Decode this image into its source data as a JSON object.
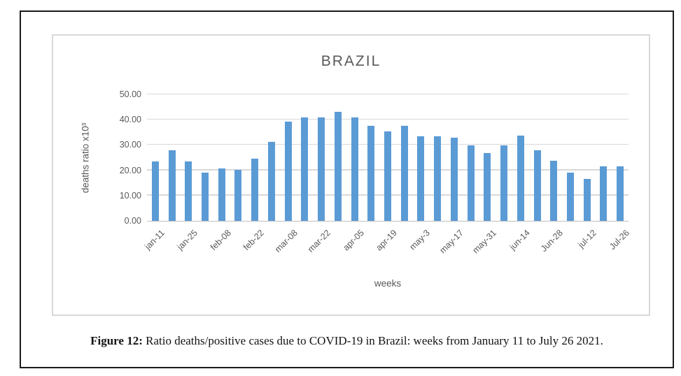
{
  "figure": {
    "caption_prefix": "Figure 12:",
    "caption_text": " Ratio deaths/positive cases due to COVID-19 in Brazil: weeks from January 11 to July 26 2021."
  },
  "chart_data": {
    "type": "bar",
    "title": "BRAZIL",
    "xlabel": "weeks",
    "ylabel": "deaths ratio x10³",
    "ylim": [
      0,
      50
    ],
    "grid": true,
    "legend": "none",
    "ytick_values": [
      0,
      10,
      20,
      30,
      40,
      50
    ],
    "ytick_labels": [
      "0.00",
      "10.00",
      "20.00",
      "30.00",
      "40.00",
      "50.00"
    ],
    "x_labels": [
      "jan-11",
      "",
      "jan-25",
      "",
      "feb-08",
      "",
      "feb-22",
      "",
      "mar-08",
      "",
      "mar-22",
      "",
      "apr-05",
      "",
      "apr-19",
      "",
      "may-3",
      "",
      "may-17",
      "",
      "may-31",
      "",
      "jun-14",
      "",
      "Jun-28",
      "",
      "jul-12",
      "",
      "Jul-26"
    ],
    "values": [
      23.5,
      28.0,
      23.5,
      19.2,
      20.8,
      20.3,
      24.5,
      31.3,
      39.3,
      40.8,
      40.8,
      43.2,
      40.8,
      37.6,
      35.3,
      37.6,
      33.4,
      33.4,
      32.8,
      29.8,
      26.7,
      29.8,
      33.8,
      27.9,
      23.8,
      19.0,
      16.5,
      21.6,
      21.6
    ]
  },
  "colors": {
    "bar": "#5b9bd5",
    "gridline": "#d9d9d9",
    "axis_line": "#bfbfbf",
    "axis_text": "#595959",
    "chart_border": "#d9d9d9",
    "frame_border": "#1a1a1a"
  }
}
